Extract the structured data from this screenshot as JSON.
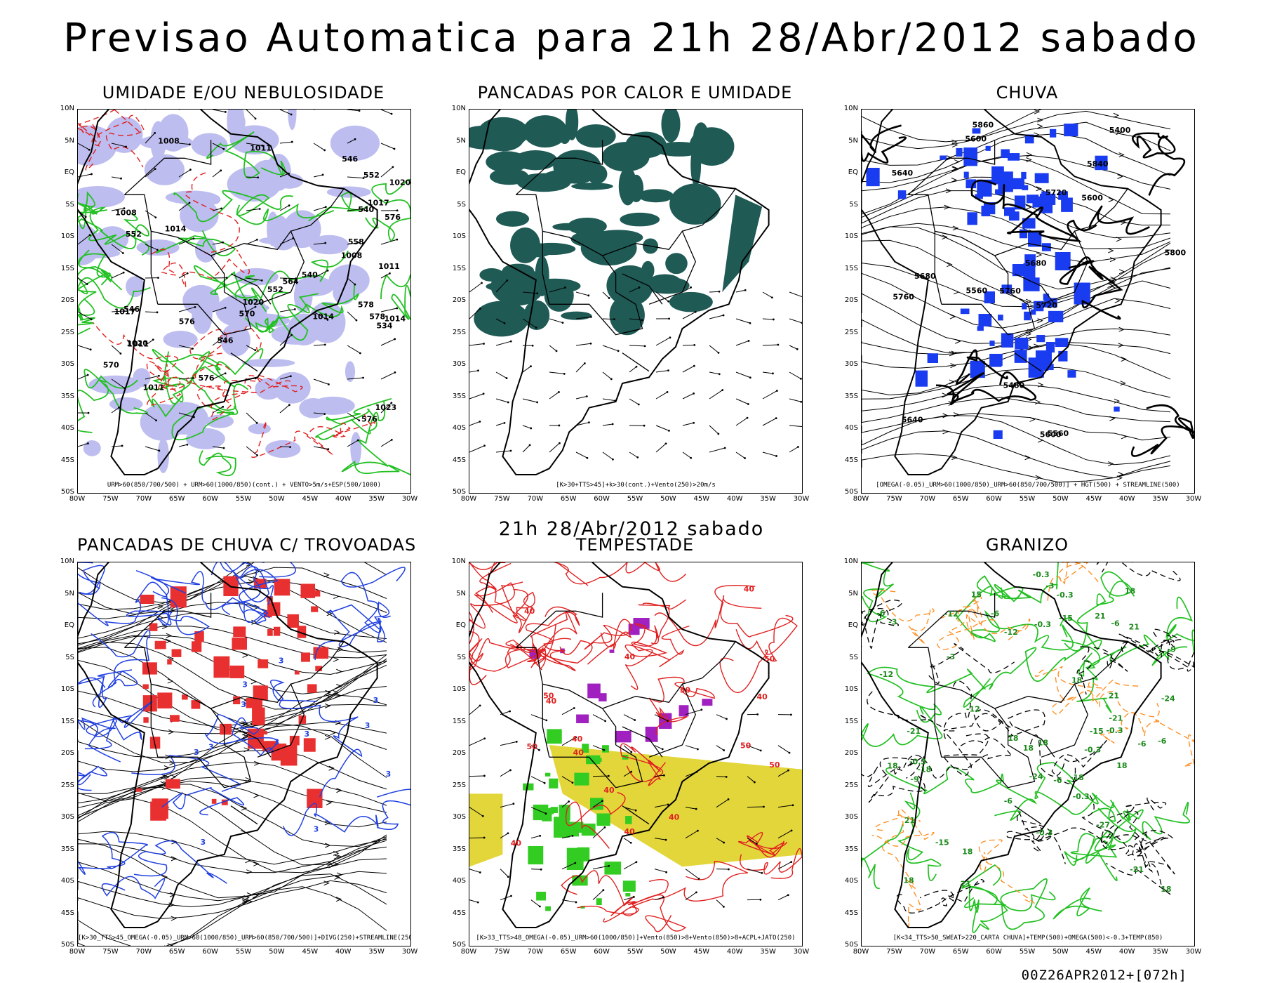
{
  "page_title": "Previsao Automatica para 21h 28/Abr/2012 sabado",
  "subtitle": "21h 28/Abr/2012 sabado",
  "footer_code": "00Z26APR2012+[072h]",
  "lat_ticks": [
    "10N",
    "5N",
    "EQ",
    "5S",
    "10S",
    "15S",
    "20S",
    "25S",
    "30S",
    "35S",
    "40S",
    "45S",
    "50S"
  ],
  "lon_ticks": [
    "80W",
    "75W",
    "70W",
    "65W",
    "60W",
    "55W",
    "50W",
    "45W",
    "40W",
    "35W",
    "30W"
  ],
  "colors": {
    "moisture": "#bdbdf0",
    "contour_green": "#22c022",
    "contour_red": "#e02020",
    "heat_dark": "#1f5a55",
    "rain_blue": "#1a3cf0",
    "storm_red": "#e83030",
    "storm_yellow": "#e3d63a",
    "storm_green": "#33cc22",
    "hail_orange": "#ff8a1a"
  },
  "panels": [
    {
      "title": "UMIDADE E/OU NEBULOSIDADE",
      "legend": "URM>60(850/700/500) + URM>60(1000/850)(cont.) + VENTO>5m/s+ESP(500/1000)",
      "labels": [
        "1014",
        "1011",
        "1008",
        "576",
        "578",
        "1011",
        "576",
        "576",
        "1011",
        "1008",
        "1011",
        "570",
        "564",
        "576",
        "578",
        "570",
        "1014",
        "1017",
        "1020",
        "558",
        "552",
        "546",
        "1023",
        "1014",
        "1020",
        "552",
        "540",
        "1017",
        "546",
        "540",
        "534",
        "1008",
        "1020",
        "546",
        "552"
      ]
    },
    {
      "title": "PANCADAS POR CALOR E UMIDADE",
      "legend": "[K>30+TTS>45]+k>30(cont.)+Vento(250)>20m/s",
      "labels": []
    },
    {
      "title": "CHUVA",
      "legend": "[OMEGA(-0.05)_URM>60(1000/850)_URM>60(850/700/500)] + HGT(500) + STREAMLINE(500)",
      "labels": [
        "5860",
        "5840",
        "5800",
        "5760",
        "5720",
        "5680",
        "5640",
        "5600",
        "5760",
        "5720",
        "5680",
        "5640",
        "5600",
        "5560",
        "5600",
        "5560",
        "5480",
        "5400"
      ]
    },
    {
      "title": "PANCADAS DE CHUVA C/ TROVOADAS",
      "legend": "[K>30_TTS>45_OMEGA(-0.05)_URM>60(1000/850)_URM>60(850/700/500)]+DIVG(250)+STREAMLINE(250)",
      "labels": [
        "3",
        "3",
        "3",
        "3",
        "3",
        "3",
        "3",
        "3",
        "3",
        "3",
        "3",
        "3"
      ]
    },
    {
      "title": "TEMPESTADE",
      "legend": "[K>33_TTS>48_OMEGA(-0.05)_URM>60(1000/850)]+Vento(850)>8+Vento(850)>8+ACPL+JATO(250)",
      "labels": [
        "40",
        "40",
        "50",
        "40",
        "50",
        "40",
        "50",
        "40",
        "50",
        "40",
        "40",
        "40",
        "50",
        "40",
        "40",
        "50",
        "40"
      ]
    },
    {
      "title": "GRANIZO",
      "legend": "[K<34_TTS>50_SWEAT>220_CARTA CHUVA]+TEMP(500)+OMEGA(500)<-0.3+TEMP(850)",
      "labels": [
        "18",
        "21",
        "18",
        "-6",
        "-6",
        "-6",
        "-0.3",
        "-6",
        "-6",
        "18",
        "18",
        "-0.3",
        "18",
        "21",
        "18",
        "-0.3",
        "-6",
        "21",
        "18",
        "21",
        "-6",
        "18",
        "-0.3",
        "-0.3",
        "18",
        "15",
        "-12",
        "-18",
        "-12",
        "-9",
        "-15",
        "-15",
        "-21",
        "-12",
        "-24",
        "-0.3",
        "-0.3",
        "-3",
        "-15",
        "-18",
        "-21",
        "-12",
        "-9",
        "-24",
        "-27",
        "-21",
        "-3",
        "-3",
        "-0.3",
        "21",
        "18"
      ]
    }
  ]
}
